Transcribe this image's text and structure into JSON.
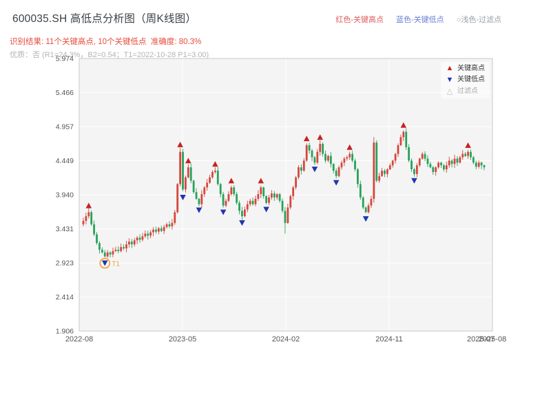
{
  "page": {
    "title": "600035.SH 高低点分析图（周K线图）"
  },
  "header": {
    "legend_top": [
      {
        "label": "红色-关键高点",
        "color": "#e05c5c"
      },
      {
        "label": "蓝色-关键低点",
        "color": "#6b7fd4"
      },
      {
        "label": "○浅色-过滤点",
        "color": "#9aa0a6"
      }
    ],
    "result_line": "识别结果: 11个关键高点, 10个关键低点  准确度: 80.3%",
    "result_color": "#e74c3c",
    "num_key_highs": 11,
    "num_key_lows": 10,
    "accuracy_pct": 80.3,
    "quality_line": "优质：否 (R1=24.3%，B2=0.54；T1=2022-10-28 P1=3.00)",
    "quality_color": "#b3b3b3"
  },
  "chart_data": {
    "type": "candlestick",
    "title": "600035.SH 高低点分析图（周K线图）",
    "symbol": "600035.SH",
    "interval": "weekly",
    "ylim": [
      1.906,
      5.974
    ],
    "y_ticks": [
      1.906,
      2.414,
      2.923,
      3.431,
      3.94,
      4.449,
      4.957,
      5.466,
      5.974
    ],
    "x_ticks": [
      {
        "label": "2022-08",
        "t": 0.0,
        "grid": true
      },
      {
        "label": "2023-05",
        "t": 0.25,
        "grid": true
      },
      {
        "label": "2024-02",
        "t": 0.5,
        "grid": true
      },
      {
        "label": "2024-11",
        "t": 0.75,
        "grid": true
      },
      {
        "label": "2025-07",
        "t": 0.972,
        "grid": false
      },
      {
        "label": "2025-08",
        "t": 1.0,
        "grid": true
      }
    ],
    "up_color": "#d6453c",
    "down_color": "#26a25a",
    "high_color": "#c62320",
    "low_color": "#2135b0",
    "filtered_color": "#bbbbbb",
    "closes": [
      3.55,
      3.62,
      3.68,
      3.5,
      3.35,
      3.22,
      3.12,
      3.08,
      3.02,
      3.08,
      3.05,
      3.1,
      3.12,
      3.1,
      3.16,
      3.14,
      3.2,
      3.24,
      3.2,
      3.26,
      3.3,
      3.27,
      3.32,
      3.36,
      3.33,
      3.38,
      3.42,
      3.39,
      3.44,
      3.4,
      3.46,
      3.5,
      3.47,
      3.52,
      3.68,
      4.1,
      4.58,
      4.02,
      4.2,
      4.35,
      4.15,
      3.98,
      3.88,
      3.8,
      3.95,
      4.05,
      4.12,
      4.2,
      4.28,
      4.3,
      4.1,
      3.95,
      3.78,
      3.85,
      3.95,
      4.05,
      3.95,
      3.82,
      3.7,
      3.62,
      3.72,
      3.8,
      3.85,
      3.8,
      3.88,
      3.95,
      4.05,
      3.92,
      3.82,
      3.9,
      3.96,
      3.9,
      3.95,
      3.85,
      3.7,
      3.52,
      3.75,
      3.92,
      4.05,
      4.2,
      4.35,
      4.3,
      4.45,
      4.68,
      4.6,
      4.5,
      4.42,
      4.58,
      4.7,
      4.55,
      4.45,
      4.52,
      4.4,
      4.3,
      4.22,
      4.35,
      4.42,
      4.48,
      4.5,
      4.55,
      4.45,
      4.32,
      4.1,
      3.9,
      3.75,
      3.68,
      3.78,
      3.88,
      4.72,
      4.15,
      4.22,
      4.3,
      4.25,
      4.32,
      4.38,
      4.45,
      4.55,
      4.68,
      4.8,
      4.88,
      4.65,
      4.45,
      4.32,
      4.25,
      4.38,
      4.48,
      4.55,
      4.48,
      4.4,
      4.35,
      4.28,
      4.35,
      4.42,
      4.38,
      4.32,
      4.38,
      4.45,
      4.4,
      4.48,
      4.42,
      4.5,
      4.55,
      4.52,
      4.58,
      4.5,
      4.42,
      4.36,
      4.42,
      4.38,
      4.35
    ],
    "wick_overrides": {
      "75": {
        "lo": 3.36
      },
      "108": {
        "hi": 4.8
      }
    },
    "key_highs": [
      {
        "i": 2,
        "p": 3.73
      },
      {
        "i": 36,
        "p": 4.64
      },
      {
        "i": 39,
        "p": 4.4
      },
      {
        "i": 49,
        "p": 4.35
      },
      {
        "i": 55,
        "p": 4.1
      },
      {
        "i": 66,
        "p": 4.1
      },
      {
        "i": 83,
        "p": 4.73
      },
      {
        "i": 88,
        "p": 4.75
      },
      {
        "i": 99,
        "p": 4.6
      },
      {
        "i": 119,
        "p": 4.93
      },
      {
        "i": 143,
        "p": 4.63
      }
    ],
    "key_lows": [
      {
        "i": 8,
        "p": 2.97
      },
      {
        "i": 37,
        "p": 3.95
      },
      {
        "i": 43,
        "p": 3.76
      },
      {
        "i": 52,
        "p": 3.73
      },
      {
        "i": 59,
        "p": 3.57
      },
      {
        "i": 68,
        "p": 3.77
      },
      {
        "i": 86,
        "p": 4.37
      },
      {
        "i": 94,
        "p": 4.17
      },
      {
        "i": 105,
        "p": 3.63
      },
      {
        "i": 123,
        "p": 4.2
      }
    ],
    "filtered_points": [],
    "annotation": {
      "label": "T1",
      "index": 8,
      "price": 2.97,
      "date": "2022-10-28",
      "value": "3.00",
      "color": "#f0a030"
    },
    "legend": [
      {
        "symbol": "▲",
        "label": "关键高点",
        "color": "#c62320",
        "label_color": "#333333"
      },
      {
        "symbol": "▼",
        "label": "关键低点",
        "color": "#2135b0",
        "label_color": "#333333"
      },
      {
        "symbol": "△",
        "label": "过滤点",
        "color": "#bbbbbb",
        "label_color": "#aaaaaa"
      }
    ]
  }
}
